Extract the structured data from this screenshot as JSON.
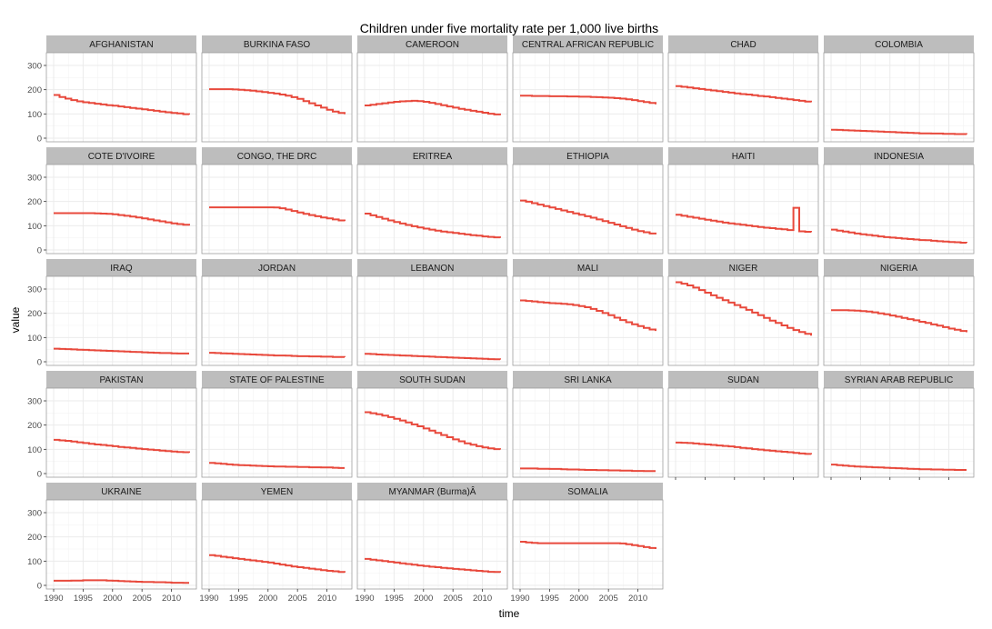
{
  "chart_data": {
    "type": "line",
    "title": "Children under five mortality rate per 1,000 live births",
    "xlabel": "time",
    "ylabel": "value",
    "xlim": [
      1990,
      2013
    ],
    "ylim": [
      0,
      330
    ],
    "x_ticks": [
      1990,
      1995,
      2000,
      2005,
      2010
    ],
    "y_ticks": [
      0,
      100,
      200,
      300
    ],
    "grid": true,
    "step": true,
    "line_color": "#e8493c",
    "strip_color": "#bdbdbd",
    "panel_border_color": "#9e9e9e",
    "grid_color": "#ebebeb",
    "x": [
      1990,
      1991,
      1992,
      1993,
      1994,
      1995,
      1996,
      1997,
      1998,
      1999,
      2000,
      2001,
      2002,
      2003,
      2004,
      2005,
      2006,
      2007,
      2008,
      2009,
      2010,
      2011,
      2012,
      2013
    ],
    "panels": [
      {
        "name": "AFGHANISTAN",
        "values": [
          178,
          170,
          163,
          157,
          152,
          148,
          145,
          142,
          139,
          136,
          134,
          131,
          128,
          125,
          122,
          119,
          116,
          113,
          110,
          107,
          104,
          102,
          99,
          97
        ]
      },
      {
        "name": "BURKINA FASO",
        "values": [
          202,
          202,
          202,
          202,
          201,
          200,
          198,
          196,
          193,
          190,
          187,
          184,
          180,
          175,
          169,
          162,
          153,
          144,
          135,
          126,
          117,
          110,
          104,
          99
        ]
      },
      {
        "name": "CAMEROON",
        "values": [
          135,
          138,
          141,
          144,
          147,
          150,
          152,
          153,
          154,
          153,
          150,
          146,
          141,
          136,
          131,
          126,
          121,
          117,
          113,
          109,
          105,
          101,
          98,
          95
        ]
      },
      {
        "name": "CENTRAL AFRICAN REPUBLIC",
        "values": [
          175,
          175,
          174,
          174,
          174,
          173,
          173,
          173,
          172,
          172,
          171,
          171,
          170,
          169,
          168,
          167,
          165,
          163,
          160,
          157,
          153,
          149,
          145,
          140
        ]
      },
      {
        "name": "CHAD",
        "values": [
          215,
          212,
          209,
          206,
          203,
          200,
          197,
          194,
          191,
          188,
          185,
          182,
          180,
          177,
          174,
          172,
          169,
          166,
          163,
          160,
          157,
          154,
          151,
          148
        ]
      },
      {
        "name": "COLOMBIA",
        "values": [
          35,
          34,
          33,
          32,
          31,
          30,
          29,
          28,
          27,
          26,
          25,
          24,
          23,
          22,
          21,
          20,
          20,
          19,
          19,
          18,
          18,
          17,
          17,
          16
        ]
      },
      {
        "name": "COTE D'IVOIRE",
        "values": [
          152,
          152,
          152,
          152,
          152,
          152,
          152,
          151,
          150,
          149,
          147,
          144,
          141,
          138,
          134,
          130,
          126,
          122,
          118,
          114,
          110,
          107,
          104,
          101
        ]
      },
      {
        "name": "CONGO, THE DRC",
        "values": [
          176,
          176,
          176,
          176,
          176,
          176,
          176,
          176,
          176,
          176,
          176,
          175,
          172,
          167,
          161,
          155,
          149,
          144,
          139,
          134,
          130,
          126,
          122,
          119
        ]
      },
      {
        "name": "ERITREA",
        "values": [
          150,
          143,
          136,
          129,
          122,
          115,
          109,
          103,
          98,
          93,
          88,
          84,
          80,
          76,
          73,
          70,
          67,
          64,
          61,
          59,
          56,
          54,
          52,
          50
        ]
      },
      {
        "name": "ETHIOPIA",
        "values": [
          204,
          199,
          193,
          187,
          181,
          175,
          169,
          163,
          157,
          151,
          145,
          139,
          133,
          126,
          119,
          112,
          105,
          98,
          91,
          84,
          78,
          73,
          68,
          64
        ]
      },
      {
        "name": "HAITI",
        "values": [
          145,
          141,
          137,
          133,
          129,
          125,
          121,
          117,
          113,
          110,
          107,
          104,
          101,
          98,
          95,
          92,
          90,
          87,
          85,
          82,
          174,
          77,
          75,
          73
        ]
      },
      {
        "name": "INDONESIA",
        "values": [
          84,
          80,
          76,
          72,
          68,
          65,
          62,
          59,
          56,
          53,
          51,
          49,
          47,
          45,
          43,
          41,
          40,
          38,
          36,
          35,
          33,
          32,
          30,
          29
        ]
      },
      {
        "name": "IRAQ",
        "values": [
          54,
          53,
          52,
          51,
          50,
          49,
          48,
          47,
          46,
          45,
          44,
          43,
          42,
          41,
          40,
          39,
          38,
          37,
          36,
          36,
          35,
          34,
          34,
          34
        ]
      },
      {
        "name": "JORDAN",
        "values": [
          37,
          36,
          35,
          34,
          33,
          32,
          31,
          30,
          29,
          28,
          27,
          26,
          26,
          25,
          24,
          23,
          23,
          22,
          22,
          21,
          21,
          20,
          20,
          19
        ]
      },
      {
        "name": "LEBANON",
        "values": [
          33,
          32,
          30,
          29,
          28,
          27,
          26,
          25,
          24,
          23,
          22,
          21,
          20,
          19,
          18,
          17,
          16,
          15,
          14,
          13,
          12,
          11,
          10,
          9
        ]
      },
      {
        "name": "MALI",
        "values": [
          253,
          251,
          249,
          246,
          244,
          242,
          241,
          239,
          237,
          234,
          230,
          225,
          218,
          210,
          201,
          192,
          182,
          172,
          163,
          155,
          147,
          140,
          133,
          127
        ]
      },
      {
        "name": "NIGER",
        "values": [
          328,
          322,
          315,
          306,
          296,
          285,
          274,
          264,
          254,
          244,
          234,
          224,
          214,
          203,
          192,
          181,
          170,
          160,
          150,
          140,
          131,
          123,
          115,
          108
        ]
      },
      {
        "name": "NIGERIA",
        "values": [
          213,
          213,
          213,
          212,
          211,
          209,
          207,
          204,
          200,
          196,
          191,
          186,
          181,
          176,
          171,
          165,
          160,
          154,
          149,
          143,
          137,
          132,
          127,
          122
        ]
      },
      {
        "name": "PAKISTAN",
        "values": [
          139,
          137,
          135,
          132,
          129,
          126,
          123,
          120,
          118,
          115,
          113,
          110,
          108,
          106,
          103,
          101,
          99,
          97,
          95,
          93,
          91,
          89,
          88,
          86
        ]
      },
      {
        "name": "STATE OF PALESTINE",
        "values": [
          44,
          42,
          40,
          38,
          36,
          35,
          34,
          33,
          32,
          31,
          30,
          29,
          29,
          28,
          28,
          27,
          27,
          26,
          26,
          25,
          25,
          24,
          23,
          23
        ]
      },
      {
        "name": "SOUTH SUDAN",
        "values": [
          253,
          249,
          245,
          239,
          233,
          226,
          219,
          211,
          203,
          195,
          186,
          177,
          168,
          159,
          150,
          141,
          133,
          125,
          119,
          113,
          108,
          104,
          101,
          99
        ]
      },
      {
        "name": "SRI LANKA",
        "values": [
          21,
          21,
          21,
          20,
          20,
          19,
          19,
          18,
          17,
          17,
          16,
          15,
          15,
          14,
          14,
          13,
          13,
          12,
          12,
          11,
          11,
          10,
          10,
          10
        ]
      },
      {
        "name": "SUDAN",
        "values": [
          128,
          127,
          126,
          124,
          122,
          120,
          118,
          116,
          114,
          112,
          109,
          106,
          104,
          101,
          99,
          96,
          94,
          92,
          90,
          88,
          85,
          83,
          81,
          79
        ]
      },
      {
        "name": "SYRIAN ARAB REPUBLIC",
        "values": [
          37,
          35,
          33,
          31,
          29,
          28,
          27,
          26,
          25,
          24,
          23,
          22,
          21,
          20,
          19,
          18,
          18,
          17,
          17,
          16,
          16,
          15,
          15,
          15
        ]
      },
      {
        "name": "UKRAINE",
        "values": [
          19,
          19,
          19,
          20,
          20,
          21,
          21,
          21,
          21,
          20,
          19,
          18,
          17,
          16,
          15,
          14,
          14,
          13,
          13,
          12,
          11,
          11,
          10,
          10
        ]
      },
      {
        "name": "YEMEN",
        "values": [
          125,
          122,
          118,
          115,
          112,
          109,
          106,
          103,
          100,
          97,
          94,
          90,
          86,
          82,
          78,
          75,
          72,
          69,
          66,
          63,
          60,
          58,
          55,
          53
        ]
      },
      {
        "name": "MYANMAR (Burma)Â",
        "values": [
          109,
          106,
          103,
          100,
          97,
          94,
          91,
          88,
          85,
          82,
          80,
          77,
          75,
          72,
          70,
          68,
          66,
          64,
          62,
          60,
          58,
          56,
          55,
          53
        ]
      },
      {
        "name": "SOMALIA",
        "values": [
          180,
          177,
          175,
          174,
          174,
          174,
          174,
          174,
          174,
          174,
          174,
          174,
          174,
          174,
          174,
          174,
          174,
          173,
          170,
          166,
          162,
          158,
          154,
          150
        ]
      }
    ]
  }
}
